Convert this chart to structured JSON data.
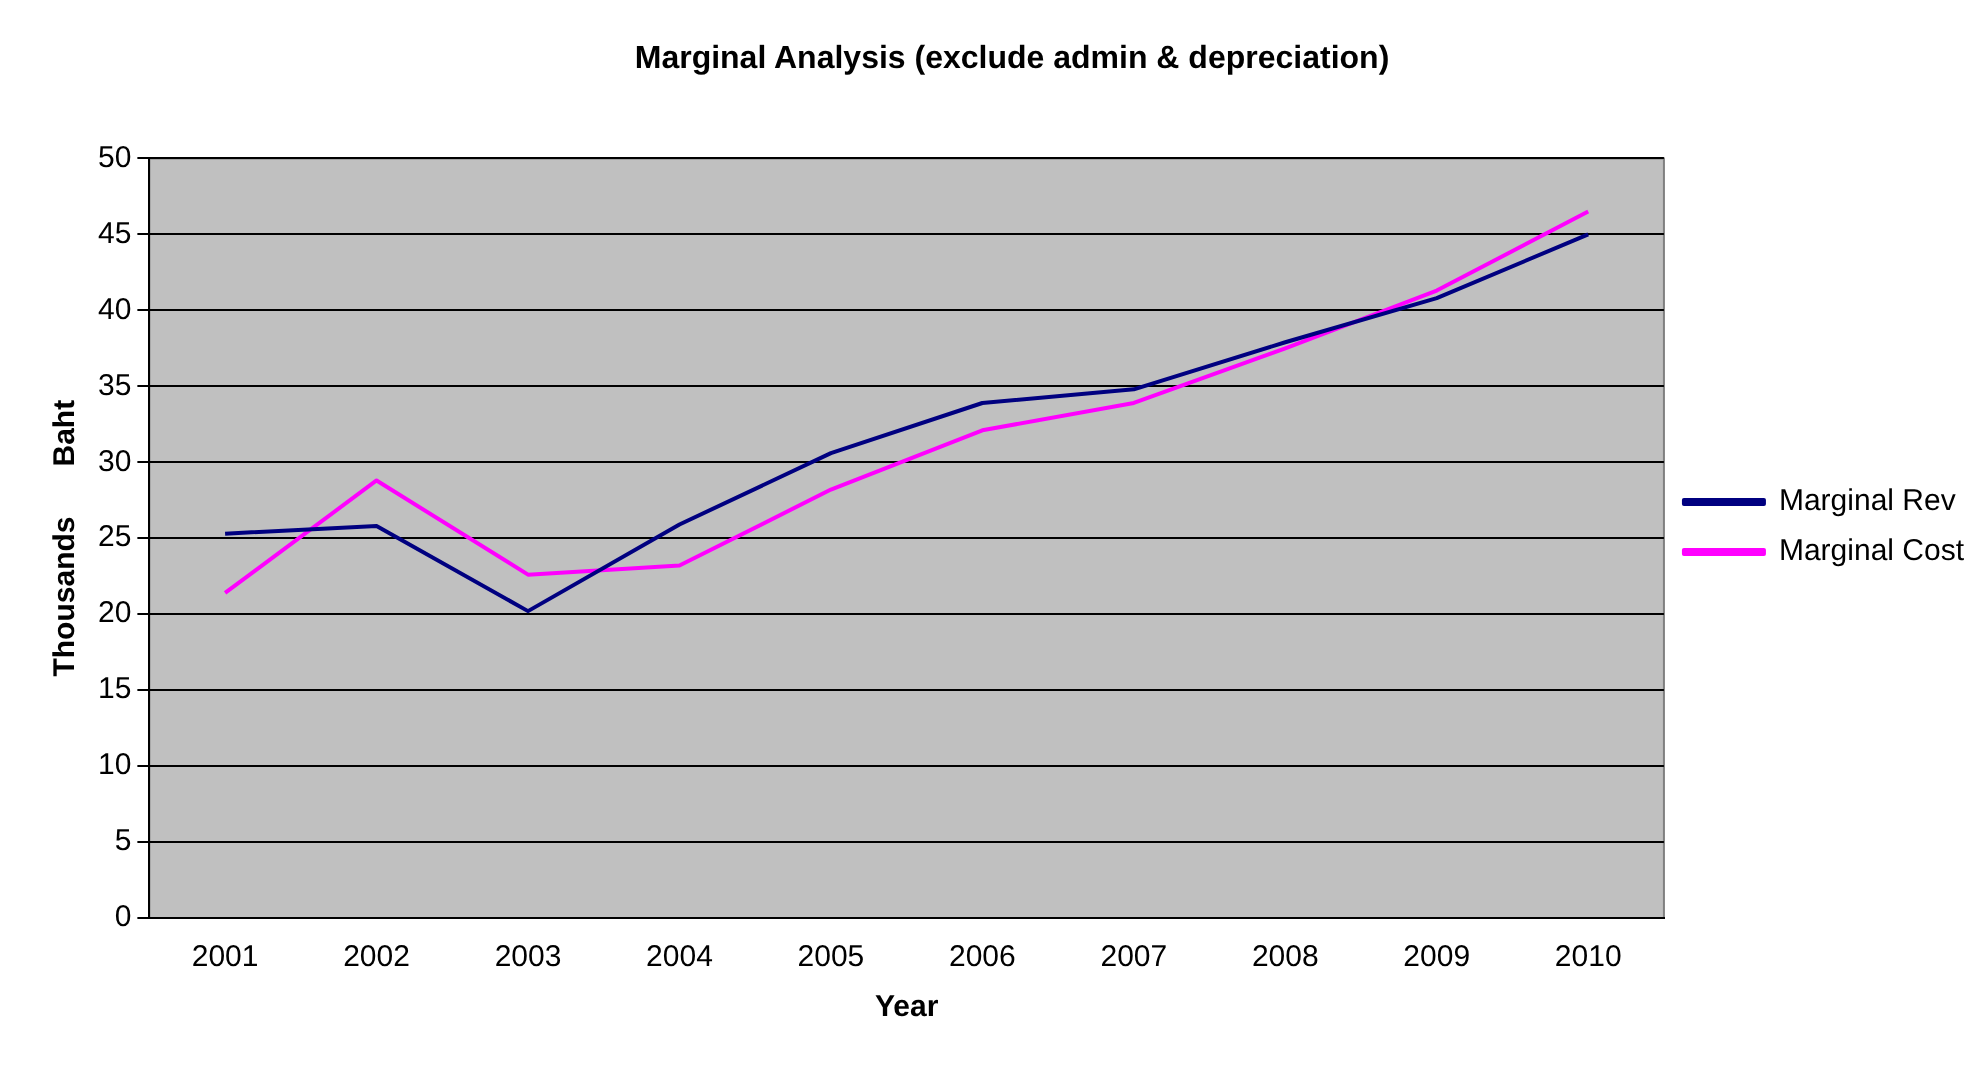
{
  "chart_data": {
    "type": "line",
    "title": "Marginal Analysis (exclude admin & depreciation)",
    "xlabel": "Year",
    "ylabel": "Thousands      Baht",
    "categories": [
      "2001",
      "2002",
      "2003",
      "2004",
      "2005",
      "2006",
      "2007",
      "2008",
      "2009",
      "2010"
    ],
    "series": [
      {
        "name": "Marginal Rev",
        "color": "#000080",
        "values": [
          25.3,
          25.8,
          20.2,
          25.9,
          30.6,
          33.9,
          34.8,
          37.9,
          40.8,
          45.0
        ]
      },
      {
        "name": "Marginal Cost",
        "color": "#ff00ff",
        "values": [
          21.4,
          28.8,
          22.6,
          23.2,
          28.2,
          32.1,
          33.9,
          37.5,
          41.3,
          46.5
        ]
      }
    ],
    "ylim": [
      0,
      50
    ],
    "yticks": [
      0,
      5,
      10,
      15,
      20,
      25,
      30,
      35,
      40,
      45,
      50
    ],
    "grid": "y",
    "legend": "right",
    "marker": "none",
    "line_style": "solid"
  }
}
